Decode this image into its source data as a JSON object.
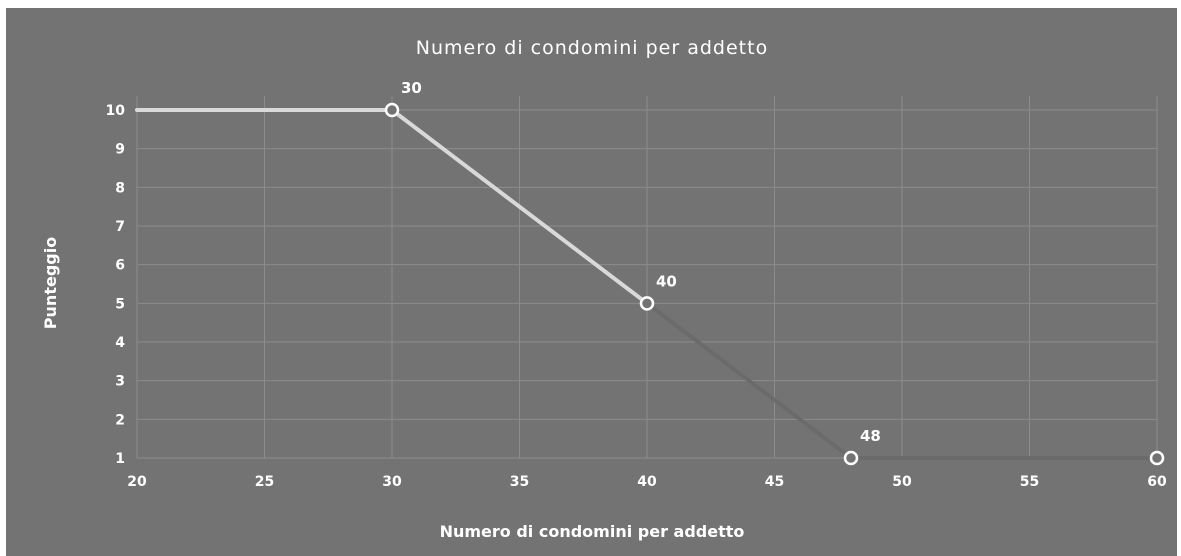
{
  "chart_data": {
    "type": "line",
    "title": "Numero di condomini per addetto",
    "xlabel": "Numero di condomini per addetto",
    "ylabel": "Punteggio",
    "xlim": [
      20,
      60
    ],
    "ylim": [
      1,
      10
    ],
    "x_ticks": [
      "20",
      "25",
      "30",
      "35",
      "40",
      "45",
      "50",
      "55",
      "60"
    ],
    "y_ticks": [
      "1",
      "2",
      "3",
      "4",
      "5",
      "6",
      "7",
      "8",
      "9",
      "10"
    ],
    "grid": true,
    "legend": "none",
    "segments": [
      {
        "x": [
          20,
          30
        ],
        "y": [
          10,
          10
        ],
        "color": "#d9d9d9"
      },
      {
        "x": [
          30,
          40
        ],
        "y": [
          10,
          5
        ],
        "color": "#d9d9d9"
      },
      {
        "x": [
          40,
          48
        ],
        "y": [
          5,
          1
        ],
        "color": "#6b6b6b"
      },
      {
        "x": [
          48,
          60
        ],
        "y": [
          1,
          1
        ],
        "color": "#6b6b6b"
      }
    ],
    "points": [
      {
        "x": 30,
        "y": 10,
        "label": "30"
      },
      {
        "x": 40,
        "y": 5,
        "label": "40"
      },
      {
        "x": 48,
        "y": 1,
        "label": "48"
      },
      {
        "x": 60,
        "y": 1,
        "label": ""
      }
    ],
    "colors": {
      "background": "#737373",
      "grid": "#8c8c8c",
      "marker_fill": "#737373",
      "marker_stroke": "#ffffff",
      "text": "#ffffff"
    }
  }
}
